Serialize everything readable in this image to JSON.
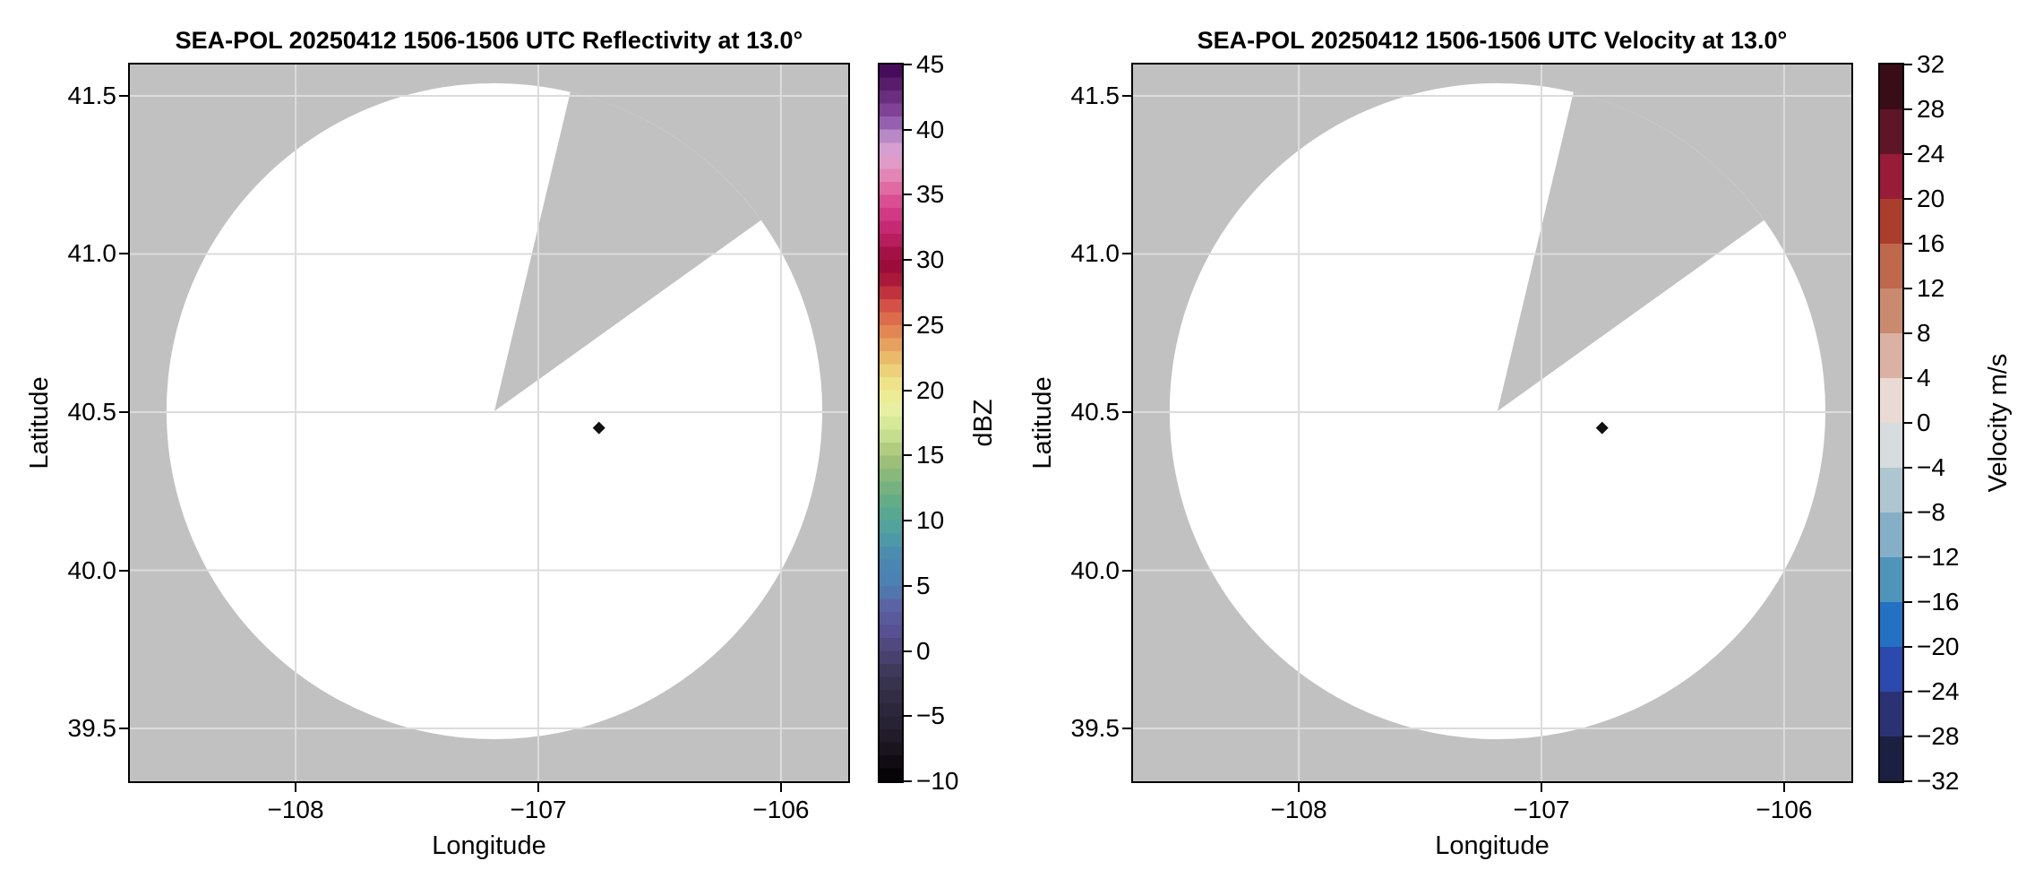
{
  "figure": {
    "background": "#ffffff",
    "colors": {
      "masked_background": "#c1c1c1",
      "scan_area": "#ffffff",
      "gridline": "#dcdcdc",
      "spine": "#000000",
      "marker": "#111111"
    }
  },
  "chart_data": [
    {
      "type": "radar_ppi",
      "title": "SEA-POL 20250412 1506-1506 UTC Reflectivity at 13.0°",
      "xlabel": "Longitude",
      "ylabel": "Latitude",
      "xlim": [
        -108.683,
        -105.723
      ],
      "ylim": [
        39.333,
        41.599
      ],
      "grid": true,
      "x_ticks": [
        -108,
        -107,
        -106
      ],
      "x_tick_labels": [
        "−108",
        "−107",
        "−106"
      ],
      "y_ticks": [
        39.5,
        40.0,
        40.5,
        41.0,
        41.5
      ],
      "y_tick_labels": [
        "39.5",
        "40.0",
        "40.5",
        "41.0",
        "41.5"
      ],
      "radar_scan": {
        "center_lon": -107.181,
        "center_lat": 40.503,
        "radius_lat_deg": 1.037,
        "missing_sector_azimuth_deg": [
          13.4,
          54.4
        ],
        "echoes": "none (scan area blank/white)"
      },
      "marker_point": {
        "lon": -106.75,
        "lat": 40.45,
        "shape": "diamond"
      },
      "colorbar": {
        "label": "dBZ",
        "vmin": -10,
        "vmax": 45,
        "style": "stepped",
        "n_steps": 55,
        "ticks": [
          -10,
          -5,
          0,
          5,
          10,
          15,
          20,
          25,
          30,
          35,
          40,
          45
        ],
        "tick_labels": [
          "−10",
          "−5",
          "0",
          "5",
          "10",
          "15",
          "20",
          "25",
          "30",
          "35",
          "40",
          "45"
        ],
        "cmap_stops": [
          {
            "v": -10,
            "c": "#000000"
          },
          {
            "v": -8,
            "c": "#161019"
          },
          {
            "v": -6,
            "c": "#241f30"
          },
          {
            "v": -4,
            "c": "#2f2a40"
          },
          {
            "v": -2,
            "c": "#3a3552"
          },
          {
            "v": 0,
            "c": "#4c4577"
          },
          {
            "v": 1.5,
            "c": "#575093"
          },
          {
            "v": 3.5,
            "c": "#5a64a4"
          },
          {
            "v": 5,
            "c": "#4c7fb3"
          },
          {
            "v": 7,
            "c": "#4b87b2"
          },
          {
            "v": 9,
            "c": "#4f9fa5"
          },
          {
            "v": 11,
            "c": "#5ba98a"
          },
          {
            "v": 13,
            "c": "#7fb47c"
          },
          {
            "v": 15,
            "c": "#a6c478"
          },
          {
            "v": 17,
            "c": "#cfe595"
          },
          {
            "v": 18.5,
            "c": "#e7f0a2"
          },
          {
            "v": 20,
            "c": "#f0ea90"
          },
          {
            "v": 21,
            "c": "#eddc82"
          },
          {
            "v": 23,
            "c": "#e9ae63"
          },
          {
            "v": 25,
            "c": "#e07a4e"
          },
          {
            "v": 27,
            "c": "#cf4343"
          },
          {
            "v": 28,
            "c": "#b12038"
          },
          {
            "v": 29.5,
            "c": "#9c0c3b"
          },
          {
            "v": 30.5,
            "c": "#a31145"
          },
          {
            "v": 31.5,
            "c": "#b81d5e"
          },
          {
            "v": 33,
            "c": "#cd2f7e"
          },
          {
            "v": 34.5,
            "c": "#da4e93"
          },
          {
            "v": 36,
            "c": "#e478ab"
          },
          {
            "v": 37,
            "c": "#e293c0"
          },
          {
            "v": 38,
            "c": "#dda2d0"
          },
          {
            "v": 39,
            "c": "#d09ad2"
          },
          {
            "v": 40,
            "c": "#a075bb"
          },
          {
            "v": 41,
            "c": "#8a4ba3"
          },
          {
            "v": 43,
            "c": "#602473"
          },
          {
            "v": 45,
            "c": "#3e0354"
          }
        ]
      }
    },
    {
      "type": "radar_ppi",
      "title": "SEA-POL 20250412 1506-1506 UTC Velocity at 13.0°",
      "xlabel": "Longitude",
      "ylabel": "Latitude",
      "xlim": [
        -108.683,
        -105.723
      ],
      "ylim": [
        39.333,
        41.599
      ],
      "grid": true,
      "x_ticks": [
        -108,
        -107,
        -106
      ],
      "x_tick_labels": [
        "−108",
        "−107",
        "−106"
      ],
      "y_ticks": [
        39.5,
        40.0,
        40.5,
        41.0,
        41.5
      ],
      "y_tick_labels": [
        "39.5",
        "40.0",
        "40.5",
        "41.0",
        "41.5"
      ],
      "radar_scan": {
        "center_lon": -107.181,
        "center_lat": 40.503,
        "radius_lat_deg": 1.037,
        "missing_sector_azimuth_deg": [
          13.4,
          54.4
        ],
        "echoes": "none (scan area blank/white)"
      },
      "marker_point": {
        "lon": -106.75,
        "lat": 40.45,
        "shape": "diamond"
      },
      "colorbar": {
        "label": "Velocity m/s",
        "vmin": -32,
        "vmax": 32,
        "style": "discrete",
        "n_steps": 16,
        "ticks": [
          -32,
          -28,
          -24,
          -20,
          -16,
          -12,
          -8,
          -4,
          0,
          4,
          8,
          12,
          16,
          20,
          24,
          28,
          32
        ],
        "tick_labels": [
          "−32",
          "−28",
          "−24",
          "−20",
          "−16",
          "−12",
          "−8",
          "−4",
          "0",
          "4",
          "8",
          "12",
          "16",
          "20",
          "24",
          "28",
          "32"
        ],
        "band_colors_bottom_to_top": [
          "#1b1f40",
          "#2b3274",
          "#2c49ae",
          "#2271c3",
          "#4f94bb",
          "#85afc6",
          "#aec6d0",
          "#d7dcdf",
          "#e9dad3",
          "#dab1a3",
          "#ca8a6d",
          "#c0684c",
          "#ab3d2c",
          "#981b38",
          "#5f1528",
          "#380d17"
        ]
      }
    }
  ]
}
